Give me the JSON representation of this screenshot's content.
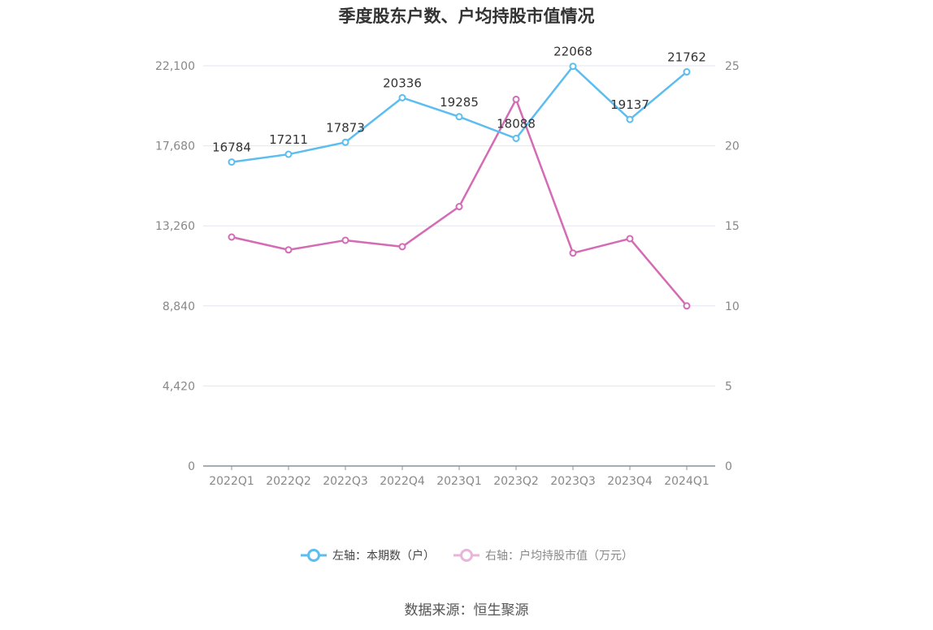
{
  "chart_data": {
    "type": "line",
    "title": "季度股东户数、户均持股市值情况",
    "categories": [
      "2022Q1",
      "2022Q2",
      "2022Q3",
      "2022Q4",
      "2023Q1",
      "2023Q2",
      "2023Q3",
      "2023Q4",
      "2024Q1"
    ],
    "y_left": {
      "ticks": [
        "0",
        "4,420",
        "8,840",
        "13,260",
        "17,680",
        "22,100"
      ],
      "ylim": [
        0,
        22100
      ]
    },
    "y_right": {
      "ticks": [
        "0",
        "5",
        "10",
        "15",
        "20",
        "25"
      ],
      "ylim": [
        0,
        25
      ]
    },
    "grid": true,
    "legend_position": "bottom",
    "series": [
      {
        "name": "左轴：本期数（户）",
        "axis": "left",
        "color": "#5bbdf0",
        "values": [
          16784,
          17211,
          17873,
          20336,
          19285,
          18088,
          22068,
          19137,
          21762
        ],
        "labels": [
          "16784",
          "17211",
          "17873",
          "20336",
          "19285",
          "18088",
          "22068",
          "19137",
          "21762"
        ]
      },
      {
        "name": "右轴：户均持股市值（万元）",
        "axis": "right",
        "color": "#d46bb4",
        "values": [
          14.3,
          13.5,
          14.1,
          13.7,
          16.2,
          22.9,
          13.3,
          14.2,
          10.0
        ]
      }
    ]
  },
  "source": "数据来源：恒生聚源"
}
